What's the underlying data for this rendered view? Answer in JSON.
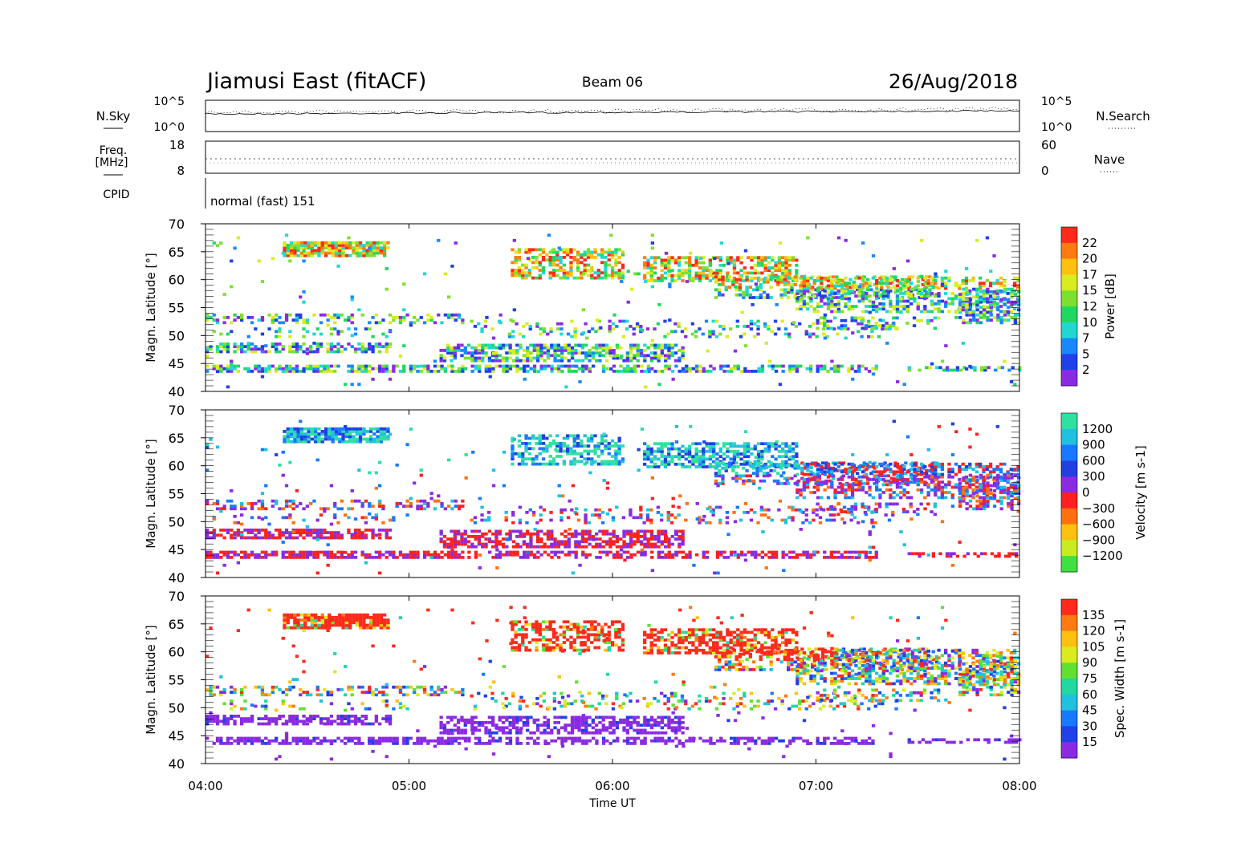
{
  "header": {
    "title": "Jiamusi East (fitACF)",
    "beam": "Beam 06",
    "date": "26/Aug/2018"
  },
  "strip_sky": {
    "left_label": "N.Sky",
    "right_label": "N.Search",
    "ticks_left": [
      "10^5",
      "10^0"
    ],
    "ticks_right": [
      "10^5",
      "10^0"
    ]
  },
  "strip_freq": {
    "left_label_1": "Freq.",
    "left_label_2": "[MHz]",
    "right_label": "Nave",
    "ticks_left": [
      "18",
      "8"
    ],
    "ticks_right": [
      "60",
      "0"
    ]
  },
  "strip_cpid": {
    "left_label": "CPID",
    "mode_text": "normal (fast) 151"
  },
  "x_axis": {
    "label": "Time UT",
    "ticks": [
      "04:00",
      "05:00",
      "06:00",
      "07:00",
      "08:00"
    ]
  },
  "chart_data": [
    {
      "type": "heatmap",
      "name": "power",
      "ylabel": "Magn. Latitude [°]",
      "yticks": [
        "70",
        "65",
        "60",
        "55",
        "50",
        "45",
        "40"
      ],
      "ylim": [
        40,
        70
      ],
      "xlim": [
        "04:00",
        "08:00"
      ],
      "colorbar": {
        "label": "Power [dB]",
        "ticks": [
          "22",
          "20",
          "17",
          "15",
          "12",
          "10",
          "7",
          "5",
          "2"
        ],
        "colors": [
          "#ff2a1a",
          "#ff7a10",
          "#ffc010",
          "#d8ec20",
          "#7de030",
          "#20d860",
          "#20d8d0",
          "#1888ff",
          "#2040e8",
          "#8a2be2"
        ]
      }
    },
    {
      "type": "heatmap",
      "name": "velocity",
      "ylabel": "Magn. Latitude [°]",
      "yticks": [
        "70",
        "65",
        "60",
        "55",
        "50",
        "45",
        "40"
      ],
      "ylim": [
        40,
        70
      ],
      "xlim": [
        "04:00",
        "08:00"
      ],
      "colorbar": {
        "label": "Velocity [m s-1]",
        "ticks": [
          "1200",
          "900",
          "600",
          "300",
          "0",
          "−300",
          "−600",
          "−900",
          "−1200"
        ],
        "colors": [
          "#30e0a0",
          "#20c0e0",
          "#1878ff",
          "#2040e0",
          "#8a2be2",
          "#ff2020",
          "#ff7010",
          "#ffc010",
          "#c8ec20",
          "#40e040"
        ]
      }
    },
    {
      "type": "heatmap",
      "name": "spectral_width",
      "ylabel": "Magn. Latitude [°]",
      "yticks": [
        "70",
        "65",
        "60",
        "55",
        "50",
        "45",
        "40"
      ],
      "ylim": [
        40,
        70
      ],
      "xlim": [
        "04:00",
        "08:00"
      ],
      "colorbar": {
        "label": "Spec. Width [m s-1]",
        "ticks": [
          "135",
          "120",
          "105",
          "90",
          "75",
          "60",
          "45",
          "30",
          "15"
        ],
        "colors": [
          "#ff2a1a",
          "#ff7a10",
          "#ffc010",
          "#d8ec20",
          "#60e030",
          "#20d8a0",
          "#20c0e0",
          "#1878ff",
          "#2040e8",
          "#8a2be2"
        ]
      }
    }
  ]
}
